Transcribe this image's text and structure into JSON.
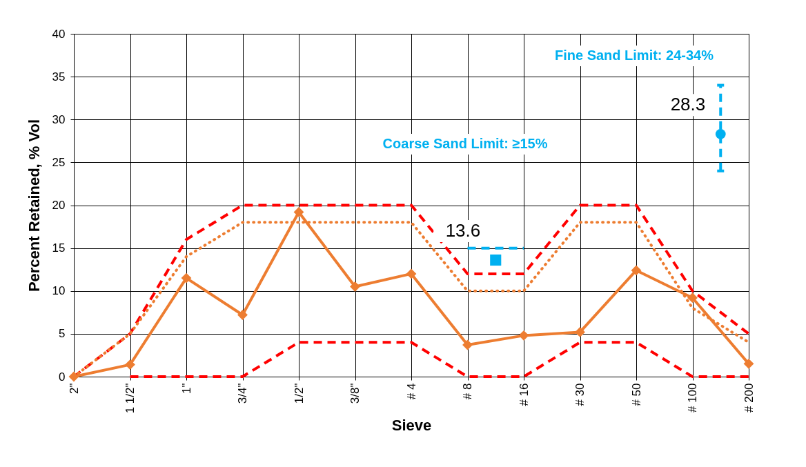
{
  "chart_data": {
    "type": "line",
    "xlabel": "Sieve",
    "ylabel": "Percent Retained, % Vol",
    "categories": [
      "2\"",
      null,
      "1 1/2\"",
      null,
      "1\"",
      null,
      "3/4\"",
      null,
      "1/2\"",
      null,
      "3/8\"",
      null,
      "# 4",
      null,
      "# 8",
      null,
      "# 16",
      null,
      "# 30",
      null,
      "# 50",
      null,
      "# 100",
      null,
      "# 200"
    ],
    "series": [
      {
        "color": "#ff0000",
        "line_style": "dashed",
        "marker": "none",
        "values": [
          0,
          null,
          5,
          null,
          16,
          null,
          20,
          null,
          20,
          null,
          20,
          null,
          20,
          null,
          12,
          null,
          12,
          null,
          20,
          null,
          20,
          null,
          10,
          null,
          5
        ]
      },
      {
        "color": "#ff0000",
        "line_style": "dashed",
        "marker": "none",
        "values": [
          null,
          null,
          0,
          null,
          0,
          null,
          0,
          null,
          4,
          null,
          4,
          null,
          4,
          null,
          0,
          null,
          0,
          null,
          4,
          null,
          4,
          null,
          0,
          null,
          0
        ]
      },
      {
        "color": "#ed7d31",
        "line_style": "dotted",
        "marker": "none",
        "values": [
          0,
          null,
          5,
          null,
          14,
          null,
          18,
          null,
          18,
          null,
          18,
          null,
          18,
          null,
          10,
          null,
          10,
          null,
          18,
          null,
          18,
          null,
          8,
          null,
          4
        ]
      },
      {
        "color": "#ed7d31",
        "line_style": "solid",
        "marker": "diamond",
        "values": [
          0,
          null,
          1.4,
          null,
          11.5,
          null,
          7.2,
          null,
          19.2,
          null,
          10.5,
          null,
          12,
          null,
          3.7,
          null,
          4.8,
          null,
          5.2,
          null,
          12.4,
          null,
          9.2,
          null,
          1.5
        ]
      },
      {
        "color": "#00b0f0",
        "line_style": "dashed",
        "marker": "none",
        "values": [
          null,
          null,
          null,
          null,
          null,
          null,
          null,
          null,
          null,
          null,
          null,
          null,
          null,
          null,
          15,
          null,
          15,
          null,
          null,
          null,
          null,
          null,
          null,
          null,
          null
        ]
      },
      {
        "type": "scatter",
        "color": "#00b0f0",
        "marker": "square",
        "values": [
          null,
          null,
          null,
          null,
          null,
          null,
          null,
          null,
          null,
          null,
          null,
          null,
          null,
          null,
          null,
          13.6,
          null,
          null,
          null,
          null,
          null,
          null,
          null,
          null,
          null
        ],
        "value_labels": [
          null,
          null,
          null,
          null,
          null,
          null,
          null,
          null,
          null,
          null,
          null,
          null,
          null,
          null,
          null,
          "13.6",
          null,
          null,
          null,
          null,
          null,
          null,
          null,
          null,
          null
        ]
      },
      {
        "type": "scatter",
        "color": "#00b0f0",
        "marker": "circle",
        "values": [
          null,
          null,
          null,
          null,
          null,
          null,
          null,
          null,
          null,
          null,
          null,
          null,
          null,
          null,
          null,
          null,
          null,
          null,
          null,
          null,
          null,
          null,
          null,
          28.3,
          null
        ],
        "errors": [
          null,
          null,
          null,
          null,
          null,
          null,
          null,
          null,
          null,
          null,
          null,
          null,
          null,
          null,
          null,
          null,
          null,
          null,
          null,
          null,
          null,
          null,
          null,
          [
            24,
            34
          ],
          null
        ],
        "value_labels": [
          null,
          null,
          null,
          null,
          null,
          null,
          null,
          null,
          null,
          null,
          null,
          null,
          null,
          null,
          null,
          null,
          null,
          null,
          null,
          null,
          null,
          null,
          null,
          "28.3",
          null
        ]
      }
    ],
    "ylim": [
      0,
      40
    ],
    "yticks": [
      0,
      5,
      10,
      15,
      20,
      25,
      30,
      35,
      40
    ],
    "grid": true,
    "annotations": [
      "Fine Sand Limit: 24-34%",
      "Coarse Sand Limit: ≥15%"
    ]
  }
}
